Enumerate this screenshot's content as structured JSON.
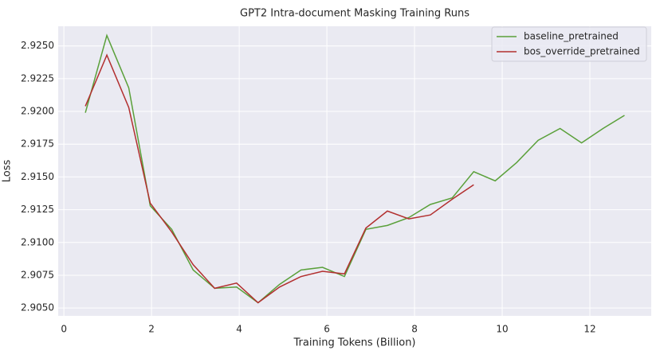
{
  "chart_data": {
    "type": "line",
    "title": "GPT2 Intra-document Masking Training Runs",
    "x_label": "Training Tokens (Billion)",
    "y_label": "Loss",
    "x": [
      0.49,
      0.98,
      1.48,
      1.97,
      2.46,
      2.95,
      3.44,
      3.94,
      4.43,
      4.92,
      5.41,
      5.9,
      6.4,
      6.89,
      7.38,
      7.87,
      8.36,
      8.86,
      9.35,
      9.84,
      10.33,
      10.82,
      11.32,
      11.81,
      12.3,
      12.79
    ],
    "series": [
      {
        "name": "baseline_pretrained",
        "color": "#5aa03a",
        "values": [
          2.9199,
          2.9258,
          2.9218,
          2.9128,
          2.911,
          2.9079,
          2.9065,
          2.9066,
          2.9054,
          2.9068,
          2.9079,
          2.9081,
          2.9074,
          2.911,
          2.9113,
          2.9119,
          2.9129,
          2.9134,
          2.9154,
          2.9147,
          2.9161,
          2.9178,
          2.9187,
          2.9176,
          2.9187,
          2.9197
        ]
      },
      {
        "name": "bos_override_pretrained",
        "color": "#b22f2f",
        "values": [
          2.9204,
          2.9243,
          2.9203,
          2.913,
          2.9108,
          2.9083,
          2.9065,
          2.9069,
          2.9054,
          2.9066,
          2.9074,
          2.9078,
          2.9076,
          2.9111,
          2.9124,
          2.9118,
          2.9121,
          2.9133,
          2.9144,
          null,
          null,
          null,
          null,
          null,
          null,
          null
        ]
      }
    ],
    "xlim": [
      -0.13,
      13.4
    ],
    "xticks": [
      0,
      2,
      4,
      6,
      8,
      10,
      12
    ],
    "ylim": [
      2.9044,
      2.9265
    ],
    "yticks": [
      {
        "value": 2.905,
        "label": "2.9050"
      },
      2.9075,
      {
        "value": 2.91,
        "label": "2.9100"
      },
      2.9125,
      {
        "value": 2.915,
        "label": "2.9150"
      },
      2.9175,
      {
        "value": 2.92,
        "label": "2.9200"
      },
      2.9225,
      {
        "value": 2.925,
        "label": "2.9250"
      }
    ],
    "grid": true,
    "legend": "upper right"
  }
}
